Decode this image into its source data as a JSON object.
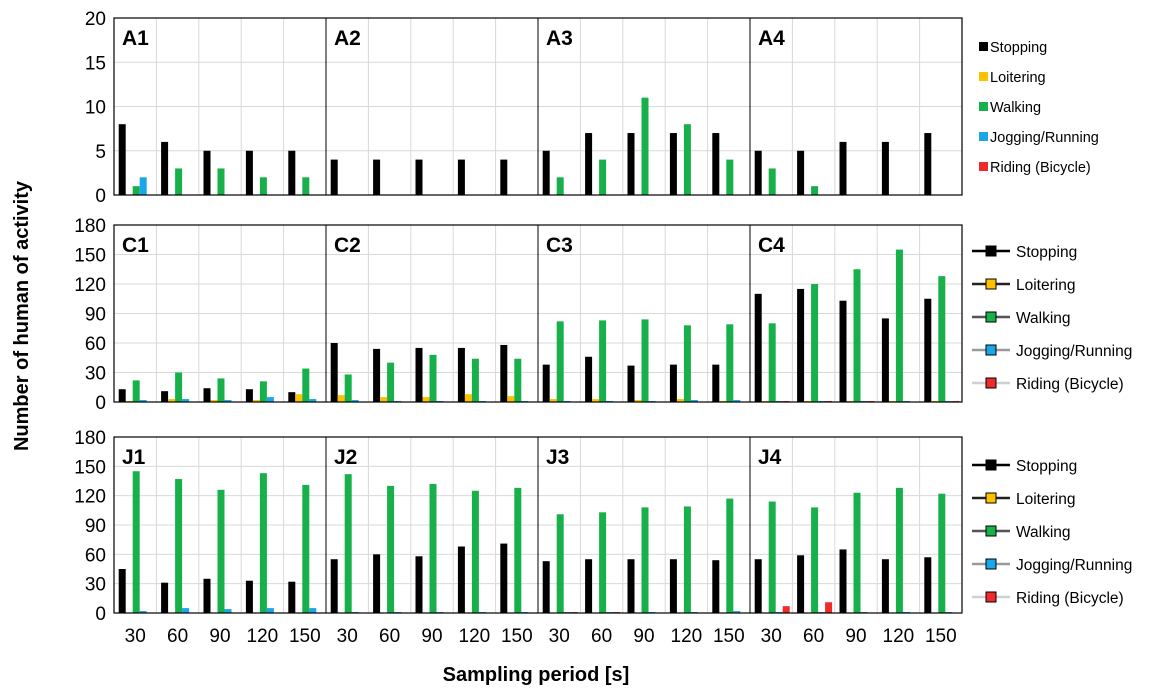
{
  "colors": {
    "stopping": "#000000",
    "loitering": "#ffc000",
    "walking": "#17b04a",
    "jogging": "#1aa7e8",
    "riding": "#ee2a2a",
    "grid": "#d9d9d9",
    "border": "#000000"
  },
  "ylabel": "Number of human of activity",
  "xlabel": "Sampling period [s]",
  "legend": [
    "Stopping",
    "Loitering",
    "Walking",
    "Jogging/Running",
    "Riding (Bicycle)"
  ],
  "chart_data": [
    {
      "type": "bar",
      "row": "A",
      "ylim": [
        0,
        20
      ],
      "yticks": [
        0,
        5,
        10,
        15,
        20
      ],
      "categories": [
        "30",
        "60",
        "90",
        "120",
        "150"
      ],
      "legend_style": "bars",
      "legend_placement": "right",
      "panels": [
        {
          "label": "A1",
          "series": [
            {
              "name": "Stopping",
              "values": [
                8,
                6,
                5,
                5,
                5
              ]
            },
            {
              "name": "Loitering",
              "values": [
                0,
                0,
                0,
                0,
                0
              ]
            },
            {
              "name": "Walking",
              "values": [
                1,
                3,
                3,
                2,
                2
              ]
            },
            {
              "name": "Jogging/Running",
              "values": [
                2,
                0,
                0,
                0,
                0
              ]
            },
            {
              "name": "Riding (Bicycle)",
              "values": [
                0,
                0,
                0,
                0,
                0
              ]
            }
          ]
        },
        {
          "label": "A2",
          "series": [
            {
              "name": "Stopping",
              "values": [
                4,
                4,
                4,
                4,
                4
              ]
            },
            {
              "name": "Loitering",
              "values": [
                0,
                0,
                0,
                0,
                0
              ]
            },
            {
              "name": "Walking",
              "values": [
                0,
                0,
                0,
                0,
                0
              ]
            },
            {
              "name": "Jogging/Running",
              "values": [
                0,
                0,
                0,
                0,
                0
              ]
            },
            {
              "name": "Riding (Bicycle)",
              "values": [
                0,
                0,
                0,
                0,
                0
              ]
            }
          ]
        },
        {
          "label": "A3",
          "series": [
            {
              "name": "Stopping",
              "values": [
                5,
                7,
                7,
                7,
                7
              ]
            },
            {
              "name": "Loitering",
              "values": [
                0,
                0,
                0,
                0,
                0
              ]
            },
            {
              "name": "Walking",
              "values": [
                2,
                4,
                11,
                8,
                4
              ]
            },
            {
              "name": "Jogging/Running",
              "values": [
                0,
                0,
                0,
                0,
                0
              ]
            },
            {
              "name": "Riding (Bicycle)",
              "values": [
                0,
                0,
                0,
                0,
                0
              ]
            }
          ]
        },
        {
          "label": "A4",
          "series": [
            {
              "name": "Stopping",
              "values": [
                5,
                5,
                6,
                6,
                7
              ]
            },
            {
              "name": "Loitering",
              "values": [
                0,
                0,
                0,
                0,
                0
              ]
            },
            {
              "name": "Walking",
              "values": [
                3,
                1,
                0,
                0,
                0
              ]
            },
            {
              "name": "Jogging/Running",
              "values": [
                0,
                0,
                0,
                0,
                0
              ]
            },
            {
              "name": "Riding (Bicycle)",
              "values": [
                0,
                0,
                0,
                0,
                0
              ]
            }
          ]
        }
      ]
    },
    {
      "type": "bar",
      "row": "C",
      "ylim": [
        0,
        180
      ],
      "yticks": [
        0,
        30,
        60,
        90,
        120,
        150,
        180
      ],
      "categories": [
        "30",
        "60",
        "90",
        "120",
        "150"
      ],
      "legend_style": "lines",
      "legend_placement": "right",
      "panels": [
        {
          "label": "C1",
          "series": [
            {
              "name": "Stopping",
              "values": [
                13,
                11,
                14,
                13,
                10
              ]
            },
            {
              "name": "Loitering",
              "values": [
                1,
                3,
                2,
                2,
                8
              ]
            },
            {
              "name": "Walking",
              "values": [
                22,
                30,
                24,
                21,
                34
              ]
            },
            {
              "name": "Jogging/Running",
              "values": [
                2,
                3,
                2,
                5,
                3
              ]
            },
            {
              "name": "Riding (Bicycle)",
              "values": [
                0,
                0,
                0,
                0,
                0
              ]
            }
          ]
        },
        {
          "label": "C2",
          "series": [
            {
              "name": "Stopping",
              "values": [
                60,
                54,
                55,
                55,
                58
              ]
            },
            {
              "name": "Loitering",
              "values": [
                7,
                5,
                5,
                8,
                6
              ]
            },
            {
              "name": "Walking",
              "values": [
                28,
                40,
                48,
                44,
                44
              ]
            },
            {
              "name": "Jogging/Running",
              "values": [
                2,
                1,
                1,
                1,
                1
              ]
            },
            {
              "name": "Riding (Bicycle)",
              "values": [
                0,
                0,
                0,
                0,
                0
              ]
            }
          ]
        },
        {
          "label": "C3",
          "series": [
            {
              "name": "Stopping",
              "values": [
                38,
                46,
                37,
                38,
                38
              ]
            },
            {
              "name": "Loitering",
              "values": [
                3,
                3,
                2,
                3,
                1
              ]
            },
            {
              "name": "Walking",
              "values": [
                82,
                83,
                84,
                78,
                79
              ]
            },
            {
              "name": "Jogging/Running",
              "values": [
                1,
                1,
                1,
                2,
                2
              ]
            },
            {
              "name": "Riding (Bicycle)",
              "values": [
                0,
                0,
                0,
                0,
                0
              ]
            }
          ]
        },
        {
          "label": "C4",
          "series": [
            {
              "name": "Stopping",
              "values": [
                110,
                115,
                103,
                85,
                105
              ]
            },
            {
              "name": "Loitering",
              "values": [
                1,
                1,
                1,
                1,
                1
              ]
            },
            {
              "name": "Walking",
              "values": [
                80,
                120,
                135,
                155,
                128
              ]
            },
            {
              "name": "Jogging/Running",
              "values": [
                1,
                1,
                1,
                1,
                1
              ]
            },
            {
              "name": "Riding (Bicycle)",
              "values": [
                1,
                1,
                1,
                0,
                1
              ]
            }
          ]
        }
      ]
    },
    {
      "type": "bar",
      "row": "J",
      "ylim": [
        0,
        180
      ],
      "yticks": [
        0,
        30,
        60,
        90,
        120,
        150,
        180
      ],
      "categories": [
        "30",
        "60",
        "90",
        "120",
        "150"
      ],
      "legend_style": "lines",
      "legend_placement": "right",
      "panels": [
        {
          "label": "J1",
          "series": [
            {
              "name": "Stopping",
              "values": [
                45,
                31,
                35,
                33,
                32
              ]
            },
            {
              "name": "Loitering",
              "values": [
                0,
                0,
                0,
                0,
                0
              ]
            },
            {
              "name": "Walking",
              "values": [
                145,
                137,
                126,
                143,
                131
              ]
            },
            {
              "name": "Jogging/Running",
              "values": [
                2,
                5,
                4,
                5,
                5
              ]
            },
            {
              "name": "Riding (Bicycle)",
              "values": [
                0,
                0,
                0,
                0,
                0
              ]
            }
          ]
        },
        {
          "label": "J2",
          "series": [
            {
              "name": "Stopping",
              "values": [
                55,
                60,
                58,
                68,
                71
              ]
            },
            {
              "name": "Loitering",
              "values": [
                0,
                0,
                0,
                0,
                0
              ]
            },
            {
              "name": "Walking",
              "values": [
                142,
                130,
                132,
                125,
                128
              ]
            },
            {
              "name": "Jogging/Running",
              "values": [
                1,
                1,
                1,
                1,
                1
              ]
            },
            {
              "name": "Riding (Bicycle)",
              "values": [
                0,
                0,
                0,
                0,
                0
              ]
            }
          ]
        },
        {
          "label": "J3",
          "series": [
            {
              "name": "Stopping",
              "values": [
                53,
                55,
                55,
                55,
                54
              ]
            },
            {
              "name": "Loitering",
              "values": [
                0,
                0,
                0,
                0,
                0
              ]
            },
            {
              "name": "Walking",
              "values": [
                101,
                103,
                108,
                109,
                117
              ]
            },
            {
              "name": "Jogging/Running",
              "values": [
                1,
                1,
                1,
                1,
                2
              ]
            },
            {
              "name": "Riding (Bicycle)",
              "values": [
                1,
                1,
                0,
                0,
                0
              ]
            }
          ]
        },
        {
          "label": "J4",
          "series": [
            {
              "name": "Stopping",
              "values": [
                55,
                59,
                65,
                55,
                57
              ]
            },
            {
              "name": "Loitering",
              "values": [
                0,
                0,
                0,
                0,
                0
              ]
            },
            {
              "name": "Walking",
              "values": [
                114,
                108,
                123,
                128,
                122
              ]
            },
            {
              "name": "Jogging/Running",
              "values": [
                1,
                1,
                1,
                1,
                1
              ]
            },
            {
              "name": "Riding (Bicycle)",
              "values": [
                7,
                11,
                0,
                0,
                0
              ]
            }
          ]
        }
      ]
    }
  ]
}
